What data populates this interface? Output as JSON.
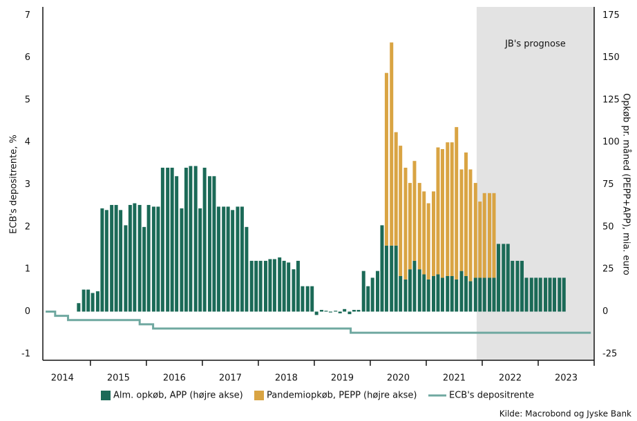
{
  "chart_data": {
    "type": "bar",
    "ylabel": "ECB's depositrente, %",
    "y2label": "Opkøb pr. måned (PEPP+APP), mia. euro",
    "source": "Kilde: Macrobond og Jyske Bank",
    "shade": {
      "from": 2021.9,
      "to": 2024.0,
      "label": "JB's prognose",
      "color": "#e3e3e3"
    },
    "xlim": [
      2014.15,
      2024.0
    ],
    "xticks": [
      {
        "value": 2014.5,
        "label": "2014"
      },
      {
        "value": 2015.5,
        "label": "2015"
      },
      {
        "value": 2016.5,
        "label": "2016"
      },
      {
        "value": 2017.5,
        "label": "2017"
      },
      {
        "value": 2018.5,
        "label": "2018"
      },
      {
        "value": 2019.5,
        "label": "2019"
      },
      {
        "value": 2020.5,
        "label": "2020"
      },
      {
        "value": 2021.5,
        "label": "2021"
      },
      {
        "value": 2022.5,
        "label": "2022"
      },
      {
        "value": 2023.5,
        "label": "2023"
      }
    ],
    "ylim": [
      -1.15,
      7.2
    ],
    "yticks": [
      -1,
      0,
      1,
      2,
      3,
      4,
      5,
      6,
      7
    ],
    "y2lim": [
      -28.75,
      180
    ],
    "y2ticks": [
      -25,
      0,
      25,
      50,
      75,
      100,
      125,
      150,
      175
    ],
    "x": [
      2014.79,
      2014.88,
      2014.96,
      2015.04,
      2015.13,
      2015.21,
      2015.29,
      2015.38,
      2015.46,
      2015.54,
      2015.63,
      2015.71,
      2015.79,
      2015.88,
      2015.96,
      2016.04,
      2016.13,
      2016.21,
      2016.29,
      2016.38,
      2016.46,
      2016.54,
      2016.63,
      2016.71,
      2016.79,
      2016.88,
      2016.96,
      2017.04,
      2017.13,
      2017.21,
      2017.29,
      2017.38,
      2017.46,
      2017.54,
      2017.63,
      2017.71,
      2017.79,
      2017.88,
      2017.96,
      2018.04,
      2018.13,
      2018.21,
      2018.29,
      2018.38,
      2018.46,
      2018.54,
      2018.63,
      2018.71,
      2018.79,
      2018.88,
      2018.96,
      2019.04,
      2019.13,
      2019.21,
      2019.29,
      2019.38,
      2019.46,
      2019.54,
      2019.63,
      2019.71,
      2019.79,
      2019.88,
      2019.96,
      2020.04,
      2020.13,
      2020.21,
      2020.29,
      2020.38,
      2020.46,
      2020.54,
      2020.63,
      2020.71,
      2020.79,
      2020.88,
      2020.96,
      2021.04,
      2021.13,
      2021.21,
      2021.29,
      2021.38,
      2021.46,
      2021.54,
      2021.63,
      2021.71,
      2021.79,
      2021.88,
      2021.96,
      2022.04,
      2022.13,
      2022.21,
      2022.29,
      2022.38,
      2022.46,
      2022.54,
      2022.63,
      2022.71,
      2022.79,
      2022.88,
      2022.96,
      2023.04,
      2023.13,
      2023.21,
      2023.29,
      2023.38,
      2023.46
    ],
    "series": [
      {
        "name": "Alm. opkøb, APP (højre akse)",
        "color": "#1b6a57",
        "axis": "y2",
        "values": [
          5,
          13,
          13,
          11,
          12,
          61,
          60,
          63,
          63,
          60,
          51,
          63,
          64,
          63,
          50,
          63,
          62,
          62,
          85,
          85,
          85,
          80,
          61,
          85,
          86,
          86,
          61,
          85,
          80,
          80,
          62,
          62,
          62,
          60,
          62,
          62,
          50,
          30,
          30,
          30,
          30,
          31,
          31,
          32,
          30,
          29,
          25,
          30,
          15,
          15,
          15,
          -2,
          1,
          0.5,
          -0.5,
          0.5,
          -1,
          1.5,
          -1.5,
          1,
          1,
          24,
          15,
          20,
          24,
          51,
          39,
          39,
          39,
          21,
          19,
          25,
          30,
          25,
          22,
          19,
          21,
          22,
          20,
          21,
          21,
          19,
          24,
          21,
          18,
          20,
          20,
          20,
          20,
          20,
          40,
          40,
          40,
          30,
          30,
          30,
          20,
          20,
          20,
          20,
          20,
          20,
          20,
          20,
          20
        ]
      },
      {
        "name": "Pandemiopkøb, PEPP (højre akse)",
        "color": "#d9a443",
        "axis": "y2",
        "values": [
          null,
          null,
          null,
          null,
          null,
          null,
          null,
          null,
          null,
          null,
          null,
          null,
          null,
          null,
          null,
          null,
          null,
          null,
          null,
          null,
          null,
          null,
          null,
          null,
          null,
          null,
          null,
          null,
          null,
          null,
          null,
          null,
          null,
          null,
          null,
          null,
          null,
          null,
          null,
          null,
          null,
          null,
          null,
          null,
          null,
          null,
          null,
          null,
          null,
          null,
          null,
          null,
          null,
          null,
          null,
          null,
          null,
          null,
          null,
          null,
          null,
          null,
          null,
          null,
          null,
          null,
          102,
          120,
          67,
          77,
          66,
          51,
          59,
          51,
          49,
          45,
          50,
          75,
          76,
          79,
          79,
          90,
          60,
          73,
          66,
          56,
          45,
          50,
          50,
          50,
          null,
          null,
          null,
          null,
          null,
          null,
          null,
          null,
          null,
          null,
          null,
          null,
          null,
          null,
          null
        ]
      },
      {
        "name": "ECB's depositrente",
        "color": "#6fa8a0",
        "type": "line",
        "x": [
          2014.2,
          2014.37,
          2014.37,
          2014.6,
          2014.6,
          2015.88,
          2015.88,
          2016.12,
          2016.12,
          2019.65,
          2019.65,
          2023.94
        ],
        "values": [
          0,
          0,
          -0.1,
          -0.1,
          -0.2,
          -0.2,
          -0.3,
          -0.3,
          -0.4,
          -0.4,
          -0.5,
          -0.5
        ]
      }
    ]
  }
}
